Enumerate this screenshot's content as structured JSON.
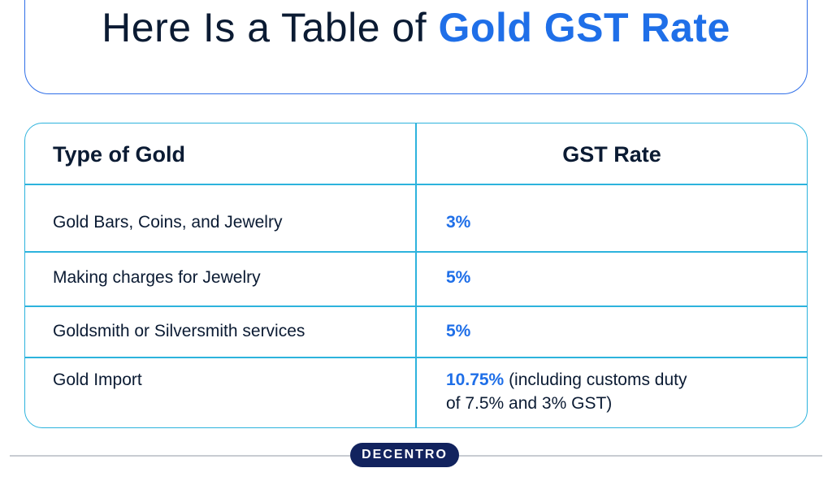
{
  "title": {
    "plain": "Here Is a Table of ",
    "highlight": "Gold GST Rate"
  },
  "table": {
    "headers": [
      "Type of Gold",
      "GST Rate"
    ],
    "rows": [
      {
        "type": "Gold Bars, Coins, and Jewelry",
        "rate": "3%",
        "note_line1": "",
        "note_line2": ""
      },
      {
        "type": "Making charges for Jewelry",
        "rate": "5%",
        "note_line1": "",
        "note_line2": ""
      },
      {
        "type": "Goldsmith or Silversmith services",
        "rate": "5%",
        "note_line1": "",
        "note_line2": ""
      },
      {
        "type": "Gold Import",
        "rate": "10.75%",
        "note_line1": " (including customs duty",
        "note_line2": "of 7.5% and 3% GST)"
      }
    ]
  },
  "brand": "DECENTRO",
  "colors": {
    "accent_blue": "#1f6fe8",
    "border_cyan": "#2db3dd",
    "navy": "#12235e",
    "text": "#0b1b33"
  }
}
